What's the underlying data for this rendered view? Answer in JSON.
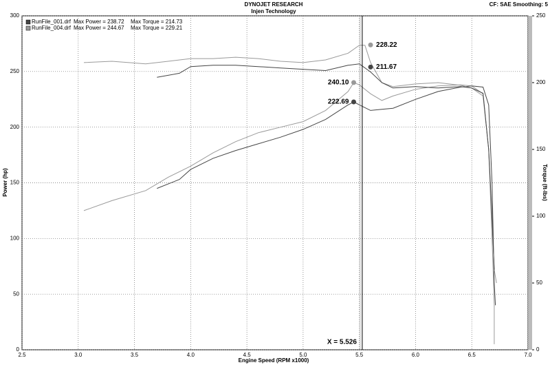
{
  "chart_data": {
    "type": "line",
    "title": "DYNOJET RESEARCH",
    "subtitle": "Injen Technology",
    "settings_text": "CF: SAE  Smoothing: 5",
    "xlabel": "Engine Speed (RPM x1000)",
    "ylabel": "Power (hp)",
    "y2label": "Torque (ft-lbs)",
    "legend": [
      {
        "name": "RunFile_001.drf",
        "max_power": "Max Power = 238.72",
        "max_torque": "Max Torque = 214.73",
        "color": "#444444"
      },
      {
        "name": "RunFile_004.drf",
        "max_power": "Max Power = 244.67",
        "max_torque": "Max Torque = 229.21",
        "color": "#999999"
      }
    ],
    "xlim": [
      2.5,
      7.0
    ],
    "xticks": [
      2.5,
      {
        "value": 3,
        "label": "3.0"
      },
      3.5,
      {
        "value": 4,
        "label": "4.0"
      },
      4.5,
      {
        "value": 5,
        "label": "5.0"
      },
      5.5,
      {
        "value": 6,
        "label": "6.0"
      },
      6.5,
      {
        "value": 7,
        "label": "7.0"
      }
    ],
    "ylim": [
      0,
      300
    ],
    "yticks": [
      0,
      50,
      100,
      150,
      200,
      250,
      300
    ],
    "y2lim": [
      0,
      250
    ],
    "y2ticks": [
      0,
      50,
      100,
      150,
      200,
      250
    ],
    "grid": true,
    "series": [
      {
        "color": "#999999",
        "x": [
          3.05,
          3.3,
          3.6,
          3.8,
          4.0,
          4.2,
          4.4,
          4.6,
          4.8,
          5.0,
          5.2,
          5.4,
          5.45,
          5.5,
          5.6,
          5.7,
          5.8,
          6.0,
          6.2,
          6.4,
          6.5,
          6.6,
          6.65,
          6.68,
          6.7,
          6.7
        ],
        "values": [
          125,
          134,
          143,
          155,
          165,
          177,
          187,
          195,
          200,
          205,
          215,
          232,
          240,
          238,
          230,
          224,
          228,
          234,
          237,
          238,
          237,
          230,
          180,
          100,
          40,
          5
        ]
      },
      {
        "color": "#444444",
        "x": [
          3.7,
          3.9,
          4.0,
          4.2,
          4.4,
          4.6,
          4.8,
          5.0,
          5.2,
          5.4,
          5.45,
          5.5,
          5.6,
          5.7,
          5.8,
          6.0,
          6.2,
          6.4,
          6.5,
          6.6,
          6.65,
          6.68,
          6.7,
          6.71
        ],
        "values": [
          145,
          153,
          162,
          172,
          179,
          185,
          191,
          198,
          207,
          220,
          222.7,
          220,
          215,
          216,
          217,
          225,
          232,
          236,
          237,
          236,
          220,
          150,
          60,
          40
        ]
      },
      {
        "color": "#999999",
        "axis": "y2",
        "x": [
          3.05,
          3.3,
          3.6,
          3.8,
          4.0,
          4.2,
          4.4,
          4.6,
          4.8,
          5.0,
          5.2,
          5.4,
          5.5,
          5.55,
          5.6,
          5.7,
          5.8,
          6.0,
          6.2,
          6.4,
          6.5,
          6.6,
          6.65,
          6.7,
          6.72
        ],
        "values": [
          215,
          216,
          214,
          216,
          218,
          218,
          219,
          218,
          216,
          215,
          217,
          222,
          228,
          228,
          215,
          200,
          197,
          199,
          200,
          198,
          196,
          190,
          150,
          60,
          50
        ]
      },
      {
        "color": "#444444",
        "axis": "y2",
        "x": [
          3.7,
          3.9,
          4.0,
          4.2,
          4.4,
          4.6,
          4.8,
          5.0,
          5.2,
          5.4,
          5.5,
          5.6,
          5.7,
          5.8,
          6.0,
          6.2,
          6.4,
          6.5,
          6.6,
          6.65,
          6.68,
          6.7
        ],
        "values": [
          204,
          207,
          212,
          213,
          213,
          212,
          211,
          210,
          209,
          213,
          214,
          208,
          200,
          196,
          197,
          196,
          197,
          196,
          192,
          150,
          100,
          60
        ]
      }
    ],
    "markers": [
      {
        "x": 5.6,
        "value": 228.22,
        "axis": "y2",
        "color": "#999999"
      },
      {
        "x": 5.6,
        "value": 211.67,
        "axis": "y2",
        "color": "#444444"
      },
      {
        "x": 5.45,
        "value": 240.1,
        "label": "240.10",
        "color": "#999999"
      },
      {
        "x": 5.45,
        "value": 222.69,
        "color": "#444444"
      }
    ],
    "cursor": {
      "x": 5.526,
      "label": "X = 5.526"
    }
  }
}
